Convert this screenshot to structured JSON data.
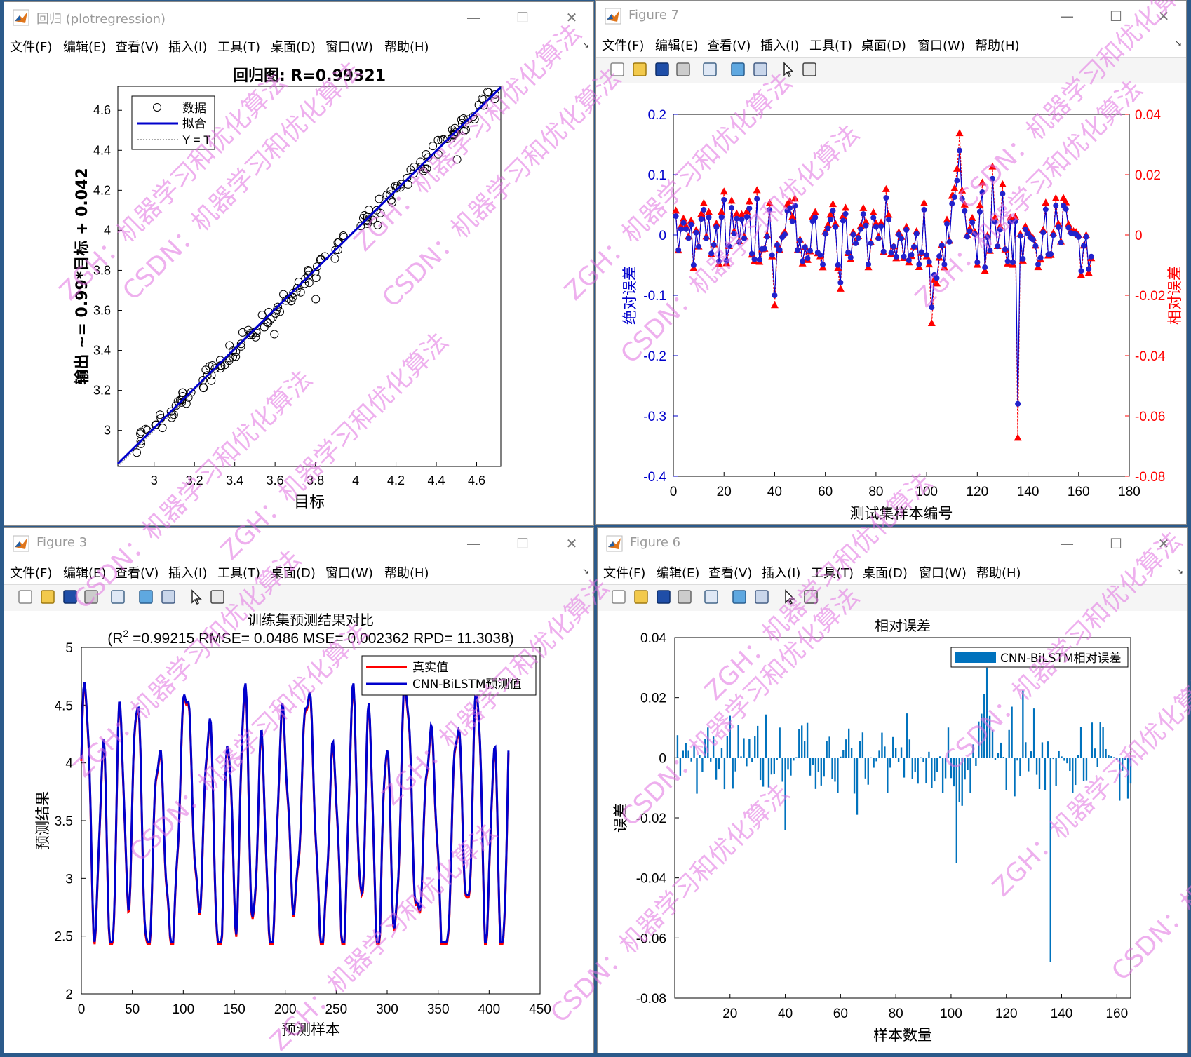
{
  "windows": {
    "regression": {
      "title": "回归 (plotregression)",
      "menu": [
        "文件(F)",
        "编辑(E)",
        "查看(V)",
        "插入(I)",
        "工具(T)",
        "桌面(D)",
        "窗口(W)",
        "帮助(H)"
      ]
    },
    "fig7": {
      "title": "Figure 7",
      "menu": [
        "文件(F)",
        "编辑(E)",
        "查看(V)",
        "插入(I)",
        "工具(T)",
        "桌面(D)",
        "窗口(W)",
        "帮助(H)"
      ]
    },
    "fig3": {
      "title": "Figure 3",
      "menu": [
        "文件(F)",
        "编辑(E)",
        "查看(V)",
        "插入(I)",
        "工具(T)",
        "桌面(D)",
        "窗口(W)",
        "帮助(H)"
      ]
    },
    "fig6": {
      "title": "Figure 6",
      "menu": [
        "文件(F)",
        "编辑(E)",
        "查看(V)",
        "插入(I)",
        "工具(T)",
        "桌面(D)",
        "窗口(W)",
        "帮助(H)"
      ]
    }
  },
  "window_controls": {
    "minimize": "—",
    "maximize": "☐",
    "close": "✕"
  },
  "toolbar_icons": [
    "new-file-icon",
    "open-folder-icon",
    "save-icon",
    "print-icon",
    "link-plot-icon",
    "colorbar-icon",
    "legend-icon",
    "pointer-icon",
    "property-editor-icon"
  ],
  "colors": {
    "blue": "#0000cc",
    "red": "#ff0000",
    "bar": "#0072bd",
    "title_inactive": "#9a9a9a"
  },
  "watermark": {
    "lines": [
      "ZGH：机器学习和优化算法",
      "CSDN：机器学习和优化算法"
    ],
    "color": "#e070e0"
  },
  "chart_data": [
    {
      "id": "regression",
      "type": "scatter",
      "title": "回归图: R=0.99321",
      "xlabel": "目标",
      "ylabel": "输出 ~= 0.99*目标 + 0.042",
      "xlim": [
        2.82,
        4.72
      ],
      "ylim": [
        2.82,
        4.72
      ],
      "xticks": [
        "3",
        "3.2",
        "3.4",
        "3.6",
        "3.8",
        "4",
        "4.2",
        "4.4",
        "4.6"
      ],
      "yticks": [
        "3",
        "3.2",
        "3.4",
        "3.6",
        "3.8",
        "4",
        "4.2",
        "4.4",
        "4.6"
      ],
      "legend": {
        "position": "top-left",
        "entries": [
          "数据",
          "拟合",
          "Y = T"
        ]
      },
      "fit": {
        "slope": 0.99,
        "intercept": 0.042
      },
      "n_points": 170
    },
    {
      "id": "fig7",
      "type": "line",
      "title": "",
      "xlabel": "测试集样本编号",
      "ylabel_left": "绝对误差",
      "ylabel_right": "相对误差",
      "xlim": [
        0,
        180
      ],
      "ylim_left": [
        -0.4,
        0.2
      ],
      "ylim_right": [
        -0.08,
        0.04
      ],
      "xticks": [
        "0",
        "20",
        "40",
        "60",
        "80",
        "100",
        "120",
        "140",
        "160",
        "180"
      ],
      "yticks_left": [
        "0.2",
        "0.1",
        "0",
        "-0.1",
        "-0.2",
        "-0.3",
        "-0.4"
      ],
      "yticks_right": [
        "0.04",
        "0.02",
        "0",
        "-0.02",
        "-0.04",
        "-0.06",
        "-0.08"
      ],
      "n_points": 165,
      "series": [
        {
          "axis": "left",
          "marker": "circle",
          "color": "#0000cc"
        },
        {
          "axis": "right",
          "marker": "triangle",
          "color": "#ff0000"
        }
      ],
      "key_points": [
        {
          "x": 113,
          "y_abs": 0.14,
          "y_rel": 0.033
        },
        {
          "x": 136,
          "y_abs": -0.28,
          "y_rel": -0.068
        },
        {
          "x": 40,
          "y_abs": -0.1,
          "y_rel": -0.024
        },
        {
          "x": 102,
          "y_abs": -0.12,
          "y_rel": -0.03
        }
      ]
    },
    {
      "id": "fig3",
      "type": "line",
      "title": "训练集预测结果对比",
      "subtitle_pre": "(R",
      "subtitle_sup": "2",
      "subtitle_post": " =0.99215 RMSE= 0.0486 MSE= 0.002362 RPD= 11.3038)",
      "xlabel": "预测样本",
      "ylabel": "预测结果",
      "xlim": [
        0,
        450
      ],
      "ylim": [
        2,
        5
      ],
      "xticks": [
        "0",
        "50",
        "100",
        "150",
        "200",
        "250",
        "300",
        "350",
        "400",
        "450"
      ],
      "yticks": [
        "5",
        "4.5",
        "4",
        "3.5",
        "3",
        "2.5",
        "2"
      ],
      "legend": {
        "position": "top-right",
        "entries": [
          "真实值",
          "CNN-BiLSTM预测值"
        ]
      },
      "n_points": 420,
      "series": [
        {
          "name": "真实值",
          "color": "#ff0000"
        },
        {
          "name": "CNN-BiLSTM预测值",
          "color": "#0000cc"
        }
      ]
    },
    {
      "id": "fig6",
      "type": "bar",
      "title": "相对误差",
      "xlabel": "样本数量",
      "ylabel": "误差",
      "xlim": [
        0,
        165
      ],
      "ylim": [
        -0.08,
        0.04
      ],
      "xticks": [
        "20",
        "40",
        "60",
        "80",
        "100",
        "120",
        "140",
        "160"
      ],
      "yticks": [
        "0.04",
        "0.02",
        "0",
        "-0.02",
        "-0.04",
        "-0.06",
        "-0.08"
      ],
      "legend": {
        "position": "top-right",
        "entries": [
          "CNN-BiLSTM相对误差"
        ]
      },
      "n_bars": 165,
      "key_points": [
        {
          "x": 113,
          "value": 0.03
        },
        {
          "x": 136,
          "value": -0.068
        },
        {
          "x": 102,
          "value": -0.035
        },
        {
          "x": 40,
          "value": -0.024
        }
      ]
    }
  ]
}
